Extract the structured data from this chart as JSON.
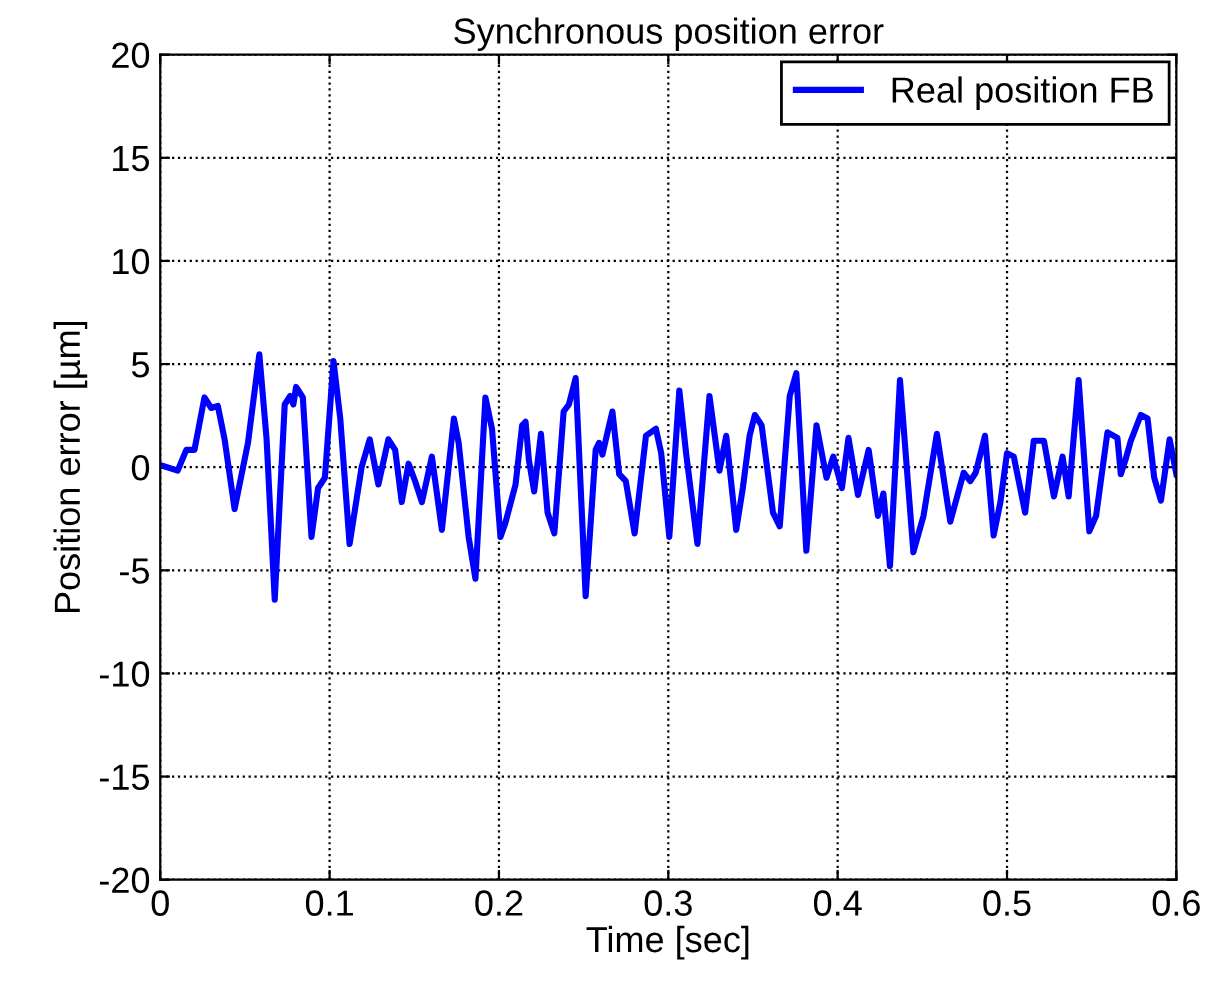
{
  "chart_data": {
    "type": "line",
    "title": "Synchronous position error",
    "xlabel": "Time [sec]",
    "ylabel": "Position error [µm]",
    "xlim": [
      0,
      0.6
    ],
    "xticks": [
      0,
      0.1,
      0.2,
      0.3,
      0.4,
      0.5,
      0.6
    ],
    "ylim": [
      -20,
      20
    ],
    "yticks": [
      -20,
      -15,
      -10,
      -5,
      0,
      5,
      10,
      15,
      20
    ],
    "grid": true,
    "legend": "top right",
    "marker": "none",
    "line_style": "solid",
    "series": [
      {
        "name": "Real position FB",
        "color": "#0000ff",
        "x": [
          0.0012,
          0.0103,
          0.0154,
          0.0202,
          0.0261,
          0.0301,
          0.034,
          0.038,
          0.0439,
          0.0518,
          0.0585,
          0.0628,
          0.0676,
          0.0735,
          0.0767,
          0.0786,
          0.0802,
          0.0842,
          0.0893,
          0.0932,
          0.0972,
          0.1023,
          0.1063,
          0.1118,
          0.1189,
          0.1237,
          0.1288,
          0.1347,
          0.1387,
          0.1426,
          0.1466,
          0.1505,
          0.1545,
          0.1604,
          0.1663,
          0.1734,
          0.1762,
          0.1821,
          0.1861,
          0.192,
          0.1959,
          0.2009,
          0.2038,
          0.2098,
          0.2137,
          0.2157,
          0.2177,
          0.2208,
          0.2248,
          0.2287,
          0.2327,
          0.2382,
          0.2413,
          0.2453,
          0.2512,
          0.2571,
          0.2591,
          0.2611,
          0.2643,
          0.267,
          0.271,
          0.2749,
          0.2801,
          0.2868,
          0.2927,
          0.2958,
          0.3006,
          0.3065,
          0.3105,
          0.3172,
          0.3243,
          0.3302,
          0.3342,
          0.3401,
          0.344,
          0.348,
          0.3511,
          0.3551,
          0.3618,
          0.3658,
          0.3717,
          0.3756,
          0.3815,
          0.3875,
          0.3934,
          0.3974,
          0.4025,
          0.4064,
          0.412,
          0.4183,
          0.4238,
          0.427,
          0.4309,
          0.4368,
          0.4447,
          0.4507,
          0.4586,
          0.4665,
          0.4744,
          0.4783,
          0.4815,
          0.487,
          0.4921,
          0.4961,
          0.5,
          0.504,
          0.5107,
          0.5158,
          0.5218,
          0.5277,
          0.5328,
          0.5364,
          0.5423,
          0.5486,
          0.5526,
          0.5593,
          0.5652,
          0.5672,
          0.5699,
          0.5731,
          0.579,
          0.583,
          0.5869,
          0.5909,
          0.596,
          0.6
        ],
        "values": [
          0.07,
          -0.17,
          0.84,
          0.84,
          3.38,
          2.87,
          2.97,
          1.35,
          -2.03,
          1.18,
          5.47,
          1.35,
          -6.42,
          3.04,
          3.45,
          3.04,
          3.89,
          3.38,
          -3.38,
          -1.01,
          -0.51,
          5.14,
          2.36,
          -3.72,
          0,
          1.35,
          -0.84,
          1.35,
          0.84,
          -1.69,
          0.17,
          -0.68,
          -1.69,
          0.51,
          -3.04,
          2.36,
          1.18,
          -3.38,
          -5.41,
          3.38,
          1.86,
          -3.38,
          -2.7,
          -0.84,
          2.03,
          2.2,
          0.34,
          -1.18,
          1.62,
          -2.2,
          -3.21,
          2.7,
          3.04,
          4.32,
          -6.25,
          0.84,
          1.18,
          0.61,
          1.76,
          2.7,
          -0.34,
          -0.68,
          -3.21,
          1.52,
          1.86,
          0.68,
          -3.38,
          3.72,
          0.68,
          -3.72,
          3.45,
          -0.17,
          1.52,
          -3.04,
          -1.01,
          1.52,
          2.53,
          2.03,
          -2.2,
          -2.87,
          3.45,
          4.56,
          -4.05,
          2.03,
          -0.51,
          0.51,
          -1.01,
          1.42,
          -1.35,
          0.84,
          -2.36,
          -1.28,
          -4.8,
          4.22,
          -4.12,
          -2.36,
          1.62,
          -2.64,
          -0.27,
          -0.68,
          -0.27,
          1.52,
          -3.31,
          -1.69,
          0.68,
          0.51,
          -2.2,
          1.28,
          1.28,
          -1.42,
          0.51,
          -1.42,
          4.22,
          -3.11,
          -2.36,
          1.69,
          1.42,
          -0.34,
          0.34,
          1.28,
          2.53,
          2.36,
          -0.51,
          -1.62,
          1.35,
          -0.34
        ]
      }
    ]
  }
}
